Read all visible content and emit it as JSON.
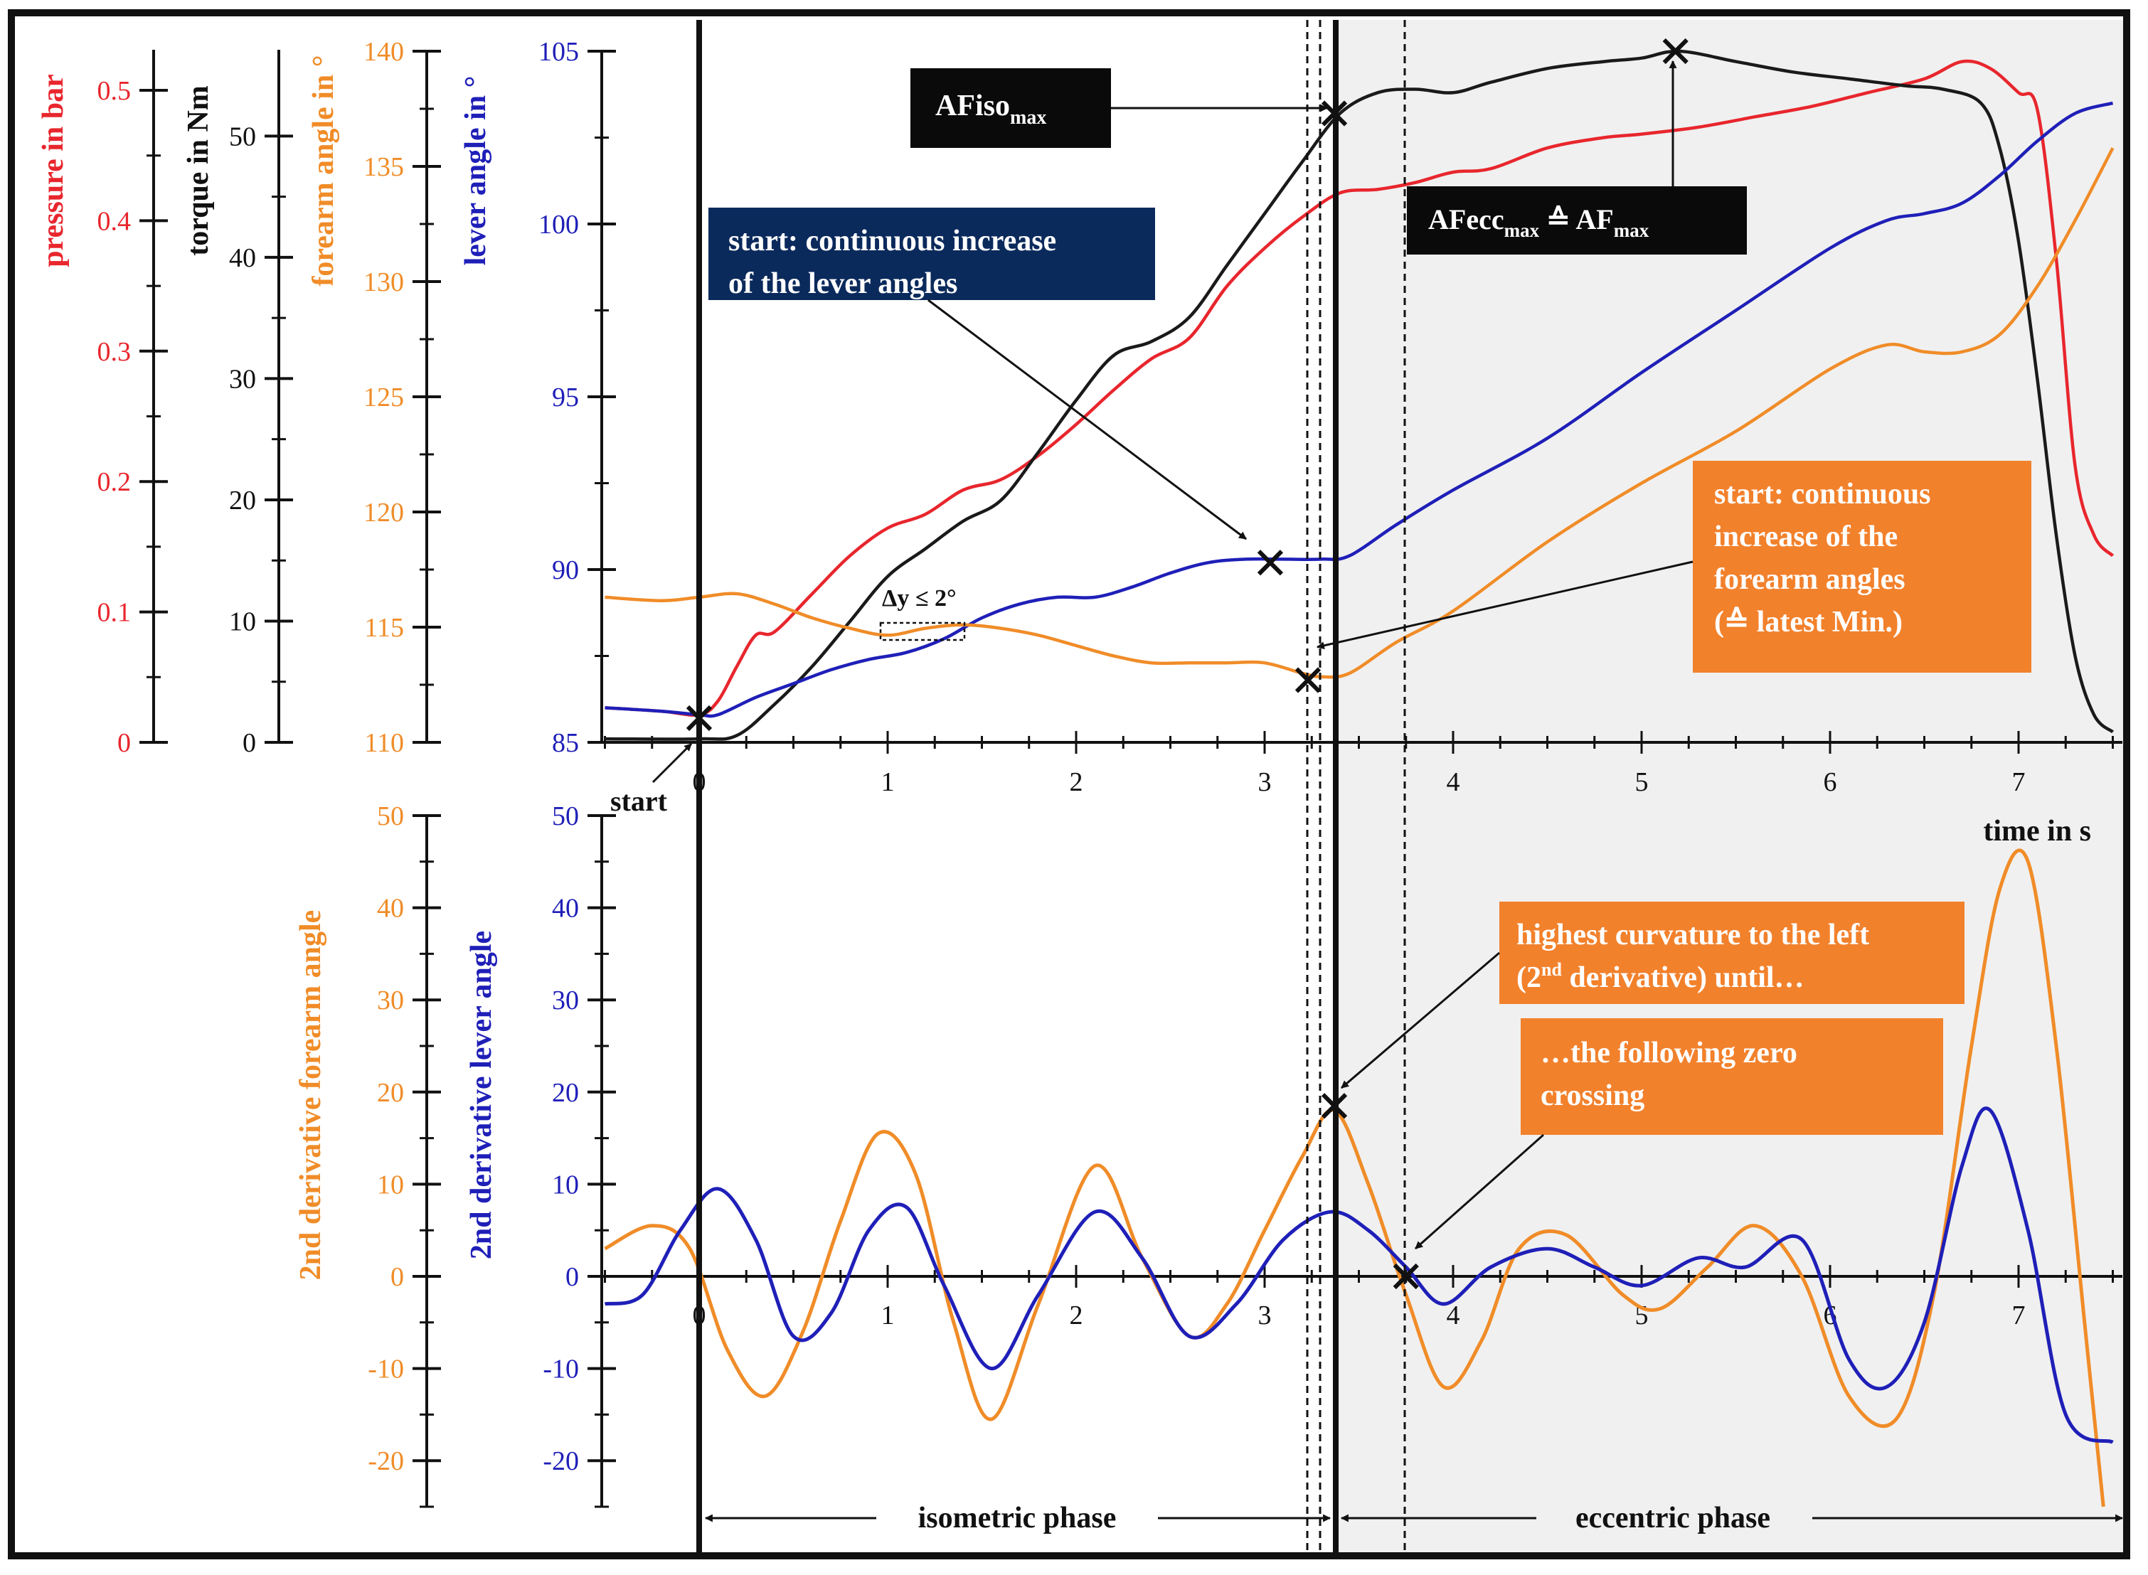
{
  "chart_data": [
    {
      "type": "line",
      "title": "",
      "xlabel": "time in s",
      "x_ticks": [
        0,
        1,
        2,
        3,
        4,
        5,
        6,
        7
      ],
      "xlim": [
        -0.5,
        7.5
      ],
      "axes": [
        {
          "key": "pressure",
          "label": "pressure in bar",
          "color": "#e8262d",
          "lim": [
            0,
            0.53
          ],
          "ticks": [
            "0",
            "0.1",
            "0.2",
            "0.3",
            "0.4",
            "0.5"
          ]
        },
        {
          "key": "torque",
          "label": "torque in Nm",
          "color": "#111111",
          "lim": [
            0,
            57
          ],
          "ticks": [
            "0",
            "10",
            "20",
            "30",
            "40",
            "50"
          ]
        },
        {
          "key": "forearm",
          "label": "forearm angle in °",
          "color": "#f08c28",
          "lim": [
            110,
            140
          ],
          "ticks": [
            "110",
            "115",
            "120",
            "125",
            "130",
            "135",
            "140"
          ]
        },
        {
          "key": "lever",
          "label": "lever angle in °",
          "color": "#1f1fb8",
          "lim": [
            85,
            105
          ],
          "ticks": [
            "85",
            "90",
            "95",
            "100",
            "105"
          ]
        }
      ],
      "series": [
        {
          "name": "pressure",
          "color": "#e8262d",
          "axis": "lever",
          "x": [
            -0.5,
            -0.2,
            0,
            0.1,
            0.2,
            0.3,
            0.4,
            0.6,
            0.8,
            1.0,
            1.2,
            1.4,
            1.6,
            1.8,
            2.0,
            2.2,
            2.4,
            2.6,
            2.8,
            3.0,
            3.2,
            3.4,
            3.6,
            3.8,
            4.0,
            4.2,
            4.5,
            4.8,
            5.0,
            5.3,
            5.6,
            5.9,
            6.2,
            6.5,
            6.7,
            6.85,
            7.0,
            7.1,
            7.2,
            7.3,
            7.4,
            7.5
          ],
          "y": [
            86.0,
            85.9,
            85.8,
            86.2,
            87.2,
            88.1,
            88.2,
            89.3,
            90.4,
            91.2,
            91.6,
            92.3,
            92.6,
            93.3,
            94.2,
            95.2,
            96.1,
            96.7,
            98.2,
            99.3,
            100.2,
            100.9,
            101.0,
            101.2,
            101.5,
            101.6,
            102.2,
            102.5,
            102.6,
            102.8,
            103.1,
            103.4,
            103.8,
            104.2,
            104.7,
            104.5,
            103.8,
            103.3,
            99,
            93,
            91,
            90.4
          ]
        },
        {
          "name": "torque",
          "color": "#1a1a1a",
          "axis": "lever",
          "x": [
            -0.5,
            0,
            0.2,
            0.4,
            0.6,
            0.8,
            1.0,
            1.2,
            1.4,
            1.6,
            1.8,
            2.0,
            2.2,
            2.4,
            2.6,
            2.8,
            3.0,
            3.2,
            3.4,
            3.6,
            3.8,
            4.0,
            4.2,
            4.5,
            4.8,
            5.0,
            5.2,
            5.5,
            5.8,
            6.1,
            6.4,
            6.6,
            6.8,
            6.9,
            7.0,
            7.1,
            7.2,
            7.3,
            7.4,
            7.5
          ],
          "y": [
            85.1,
            85.1,
            85.2,
            86.1,
            87.2,
            88.5,
            89.8,
            90.6,
            91.4,
            92.0,
            93.4,
            94.9,
            96.2,
            96.6,
            97.3,
            98.8,
            100.3,
            101.8,
            103.2,
            103.8,
            103.9,
            103.8,
            104.1,
            104.5,
            104.7,
            104.8,
            105.0,
            104.7,
            104.4,
            104.2,
            104.0,
            103.9,
            103.5,
            102.2,
            99.5,
            95.5,
            91.0,
            87.5,
            85.8,
            85.3
          ]
        },
        {
          "name": "lever angle",
          "color": "#1f1fb8",
          "axis": "lever",
          "x": [
            -0.5,
            -0.2,
            0,
            0.1,
            0.3,
            0.5,
            0.7,
            0.9,
            1.1,
            1.3,
            1.5,
            1.7,
            1.9,
            2.1,
            2.3,
            2.5,
            2.7,
            2.9,
            3.1,
            3.3,
            3.45,
            3.7,
            4.0,
            4.5,
            5.0,
            5.5,
            6.0,
            6.3,
            6.5,
            6.7,
            6.9,
            7.1,
            7.3,
            7.5
          ],
          "y": [
            86.0,
            85.9,
            85.8,
            85.8,
            86.3,
            86.7,
            87.1,
            87.4,
            87.6,
            88.0,
            88.6,
            89.0,
            89.2,
            89.2,
            89.5,
            89.9,
            90.2,
            90.3,
            90.3,
            90.3,
            90.4,
            91.3,
            92.3,
            93.8,
            95.7,
            97.5,
            99.3,
            100.1,
            100.3,
            100.6,
            101.4,
            102.4,
            103.2,
            103.5
          ]
        },
        {
          "name": "forearm angle",
          "color": "#f08c28",
          "axis": "lever",
          "x": [
            -0.5,
            -0.2,
            0,
            0.2,
            0.4,
            0.6,
            0.8,
            1.0,
            1.2,
            1.4,
            1.6,
            1.8,
            2.0,
            2.2,
            2.4,
            2.6,
            2.8,
            3.0,
            3.2,
            3.3,
            3.45,
            3.7,
            4.0,
            4.5,
            5.0,
            5.5,
            6.0,
            6.3,
            6.5,
            6.7,
            6.9,
            7.1,
            7.3,
            7.5
          ],
          "y": [
            89.2,
            89.1,
            89.2,
            89.3,
            89.0,
            88.6,
            88.3,
            88.1,
            88.3,
            88.4,
            88.3,
            88.1,
            87.8,
            87.5,
            87.3,
            87.3,
            87.3,
            87.3,
            87.0,
            86.9,
            87.0,
            87.9,
            88.8,
            90.8,
            92.5,
            94.0,
            95.8,
            96.5,
            96.3,
            96.3,
            96.8,
            98.2,
            100.1,
            102.2
          ]
        }
      ]
    },
    {
      "type": "line",
      "title": "",
      "xlabel": "",
      "x_ticks": [
        0,
        1,
        2,
        3,
        4,
        5,
        6,
        7
      ],
      "xlim": [
        -0.5,
        7.5
      ],
      "axes": [
        {
          "key": "d2forearm",
          "label": "2nd derivative forearm angle",
          "color": "#f08c28",
          "lim": [
            -25,
            50
          ],
          "ticks": [
            "-20",
            "-10",
            "0",
            "10",
            "20",
            "30",
            "40",
            "50"
          ]
        },
        {
          "key": "d2lever",
          "label": "2nd derivative lever angle",
          "color": "#1f1fb8",
          "lim": [
            -25,
            50
          ],
          "ticks": [
            "-20",
            "-10",
            "0",
            "10",
            "20",
            "30",
            "40",
            "50"
          ]
        }
      ],
      "series": [
        {
          "name": "2nd derivative forearm angle",
          "color": "#f08c28",
          "x": [
            -0.5,
            -0.25,
            -0.05,
            0.15,
            0.35,
            0.55,
            0.75,
            0.95,
            1.15,
            1.35,
            1.55,
            1.8,
            2.1,
            2.35,
            2.6,
            2.8,
            3.0,
            3.2,
            3.37,
            3.55,
            3.75,
            3.95,
            4.15,
            4.35,
            4.6,
            4.9,
            5.1,
            5.35,
            5.6,
            5.85,
            6.1,
            6.35,
            6.55,
            6.75,
            6.9,
            7.05,
            7.2,
            7.35,
            7.45
          ],
          "y": [
            3,
            5.5,
            3,
            -8,
            -13,
            -6,
            6,
            15.5,
            11,
            -5,
            -15.5,
            -3,
            12,
            2,
            -6.5,
            -3,
            5,
            13,
            18,
            10,
            -2,
            -12,
            -7,
            3,
            4.5,
            -2,
            -3.5,
            1,
            5.5,
            0,
            -13,
            -15.5,
            -2,
            25,
            42,
            45,
            25,
            -5,
            -25
          ]
        },
        {
          "name": "2nd derivative lever angle",
          "color": "#1f1fb8",
          "x": [
            -0.5,
            -0.3,
            -0.1,
            0.1,
            0.3,
            0.5,
            0.7,
            0.9,
            1.1,
            1.3,
            1.55,
            1.8,
            2.1,
            2.35,
            2.6,
            2.85,
            3.1,
            3.35,
            3.55,
            3.75,
            3.95,
            4.2,
            4.5,
            4.75,
            5.0,
            5.3,
            5.55,
            5.85,
            6.1,
            6.3,
            6.5,
            6.7,
            6.85,
            7.05,
            7.25,
            7.5
          ],
          "y": [
            -3,
            -2,
            5,
            9.5,
            4,
            -6.5,
            -4,
            5,
            7.5,
            -1,
            -10,
            -2,
            7,
            2,
            -6.5,
            -3,
            4,
            7,
            5,
            1,
            -3,
            1,
            3,
            1,
            -1,
            2,
            1,
            4,
            -9,
            -12,
            -5,
            12,
            18,
            5,
            -15,
            -18
          ]
        }
      ]
    }
  ],
  "annotations": {
    "afiso": {
      "main": "AFiso",
      "sub": "max"
    },
    "afecc": {
      "main1": "AFecc",
      "sub1": "max",
      "mid": " ≙ AF",
      "sub2": "max"
    },
    "lever_start": {
      "line1": "start: continuous increase",
      "line2": "of  the lever angles"
    },
    "forearm_start": {
      "line1": "start: continuous",
      "line2": "increase of the",
      "line3": "forearm angles",
      "line4": "(≙ latest Min.)"
    },
    "curvature": {
      "line1": "highest curvature to the left",
      "line2a": "(2",
      "line2sup": "nd",
      "line2b": " derivative) until…"
    },
    "zero_crossing": {
      "line1": "…the following zero",
      "line2": "crossing"
    },
    "delta_y": "Δy ≤ 2°",
    "start": "start",
    "isometric_phase": "isometric phase",
    "eccentric_phase": "eccentric phase"
  },
  "colors": {
    "red": "#e8262d",
    "black": "#111111",
    "orange": "#f08c28",
    "blue": "#1f1fb8",
    "navy": "#0b2a5c",
    "box_orange": "#f2812c",
    "eccentric_bg": "#f0f0f0"
  }
}
